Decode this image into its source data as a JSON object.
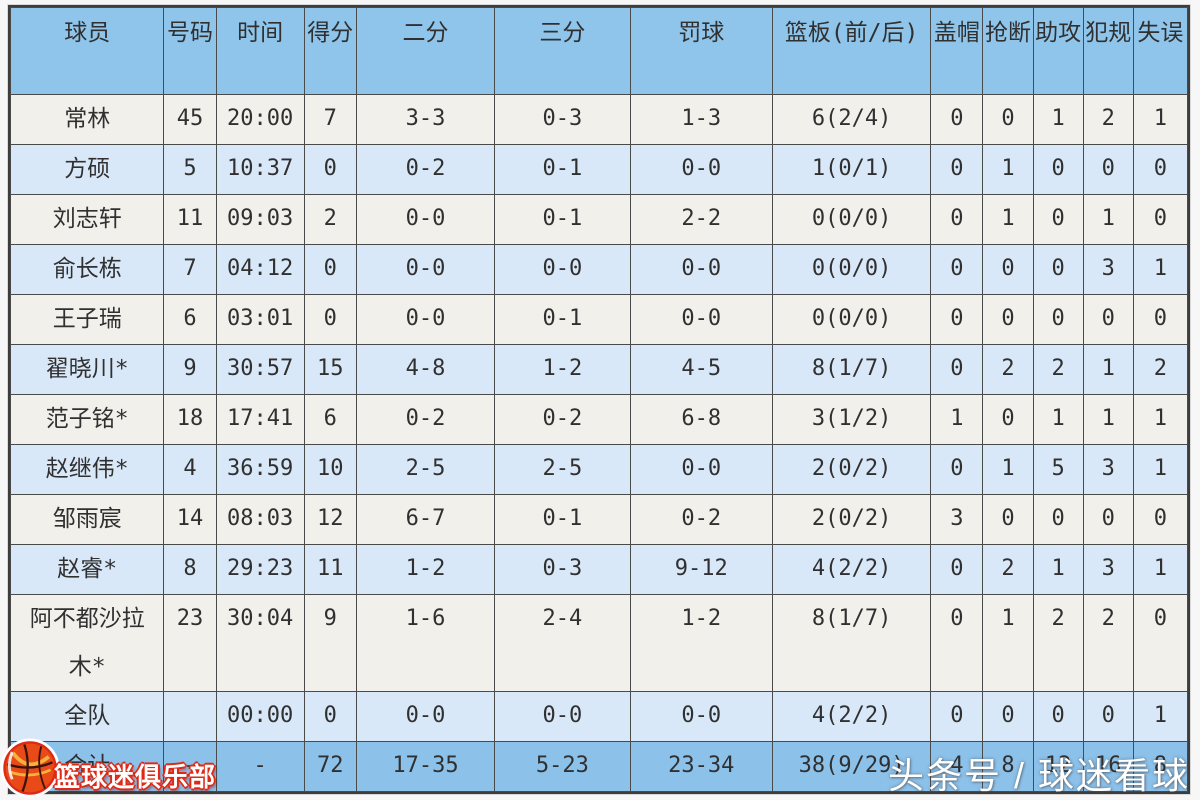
{
  "chart_data": {
    "type": "table",
    "title": "CBA player box score (Chinese)",
    "columns": [
      {
        "key": "player",
        "label": "球员"
      },
      {
        "key": "number",
        "label": "号码"
      },
      {
        "key": "time",
        "label": "时间"
      },
      {
        "key": "points",
        "label": "得分"
      },
      {
        "key": "two",
        "label": "二分"
      },
      {
        "key": "three",
        "label": "三分"
      },
      {
        "key": "ft",
        "label": "罚球"
      },
      {
        "key": "reb",
        "label": "篮板(前/后)"
      },
      {
        "key": "blk",
        "label": "盖帽"
      },
      {
        "key": "stl",
        "label": "抢断"
      },
      {
        "key": "ast",
        "label": "助攻"
      },
      {
        "key": "pf",
        "label": "犯规"
      },
      {
        "key": "to",
        "label": "失误"
      }
    ],
    "rows": [
      {
        "player": "常林",
        "number": "45",
        "time": "20:00",
        "points": "7",
        "two": "3-3",
        "three": "0-3",
        "ft": "1-3",
        "reb": "6(2/4)",
        "blk": "0",
        "stl": "0",
        "ast": "1",
        "pf": "2",
        "to": "1"
      },
      {
        "player": "方硕",
        "number": "5",
        "time": "10:37",
        "points": "0",
        "two": "0-2",
        "three": "0-1",
        "ft": "0-0",
        "reb": "1(0/1)",
        "blk": "0",
        "stl": "1",
        "ast": "0",
        "pf": "0",
        "to": "0"
      },
      {
        "player": "刘志轩",
        "number": "11",
        "time": "09:03",
        "points": "2",
        "two": "0-0",
        "three": "0-1",
        "ft": "2-2",
        "reb": "0(0/0)",
        "blk": "0",
        "stl": "1",
        "ast": "0",
        "pf": "1",
        "to": "0"
      },
      {
        "player": "俞长栋",
        "number": "7",
        "time": "04:12",
        "points": "0",
        "two": "0-0",
        "three": "0-0",
        "ft": "0-0",
        "reb": "0(0/0)",
        "blk": "0",
        "stl": "0",
        "ast": "0",
        "pf": "3",
        "to": "1"
      },
      {
        "player": "王子瑞",
        "number": "6",
        "time": "03:01",
        "points": "0",
        "two": "0-0",
        "three": "0-1",
        "ft": "0-0",
        "reb": "0(0/0)",
        "blk": "0",
        "stl": "0",
        "ast": "0",
        "pf": "0",
        "to": "0"
      },
      {
        "player": "翟晓川*",
        "number": "9",
        "time": "30:57",
        "points": "15",
        "two": "4-8",
        "three": "1-2",
        "ft": "4-5",
        "reb": "8(1/7)",
        "blk": "0",
        "stl": "2",
        "ast": "2",
        "pf": "1",
        "to": "2"
      },
      {
        "player": "范子铭*",
        "number": "18",
        "time": "17:41",
        "points": "6",
        "two": "0-2",
        "three": "0-2",
        "ft": "6-8",
        "reb": "3(1/2)",
        "blk": "1",
        "stl": "0",
        "ast": "1",
        "pf": "1",
        "to": "1"
      },
      {
        "player": "赵继伟*",
        "number": "4",
        "time": "36:59",
        "points": "10",
        "two": "2-5",
        "three": "2-5",
        "ft": "0-0",
        "reb": "2(0/2)",
        "blk": "0",
        "stl": "1",
        "ast": "5",
        "pf": "3",
        "to": "1"
      },
      {
        "player": "邹雨宸",
        "number": "14",
        "time": "08:03",
        "points": "12",
        "two": "6-7",
        "three": "0-1",
        "ft": "0-2",
        "reb": "2(0/2)",
        "blk": "3",
        "stl": "0",
        "ast": "0",
        "pf": "0",
        "to": "0"
      },
      {
        "player": "赵睿*",
        "number": "8",
        "time": "29:23",
        "points": "11",
        "two": "1-2",
        "three": "0-3",
        "ft": "9-12",
        "reb": "4(2/2)",
        "blk": "0",
        "stl": "2",
        "ast": "1",
        "pf": "3",
        "to": "1"
      },
      {
        "player": "阿不都沙拉木*",
        "number": "23",
        "time": "30:04",
        "points": "9",
        "two": "1-6",
        "three": "2-4",
        "ft": "1-2",
        "reb": "8(1/7)",
        "blk": "0",
        "stl": "1",
        "ast": "2",
        "pf": "2",
        "to": "0"
      },
      {
        "player": "全队",
        "number": "",
        "time": "00:00",
        "points": "0",
        "two": "0-0",
        "three": "0-0",
        "ft": "0-0",
        "reb": "4(2/2)",
        "blk": "0",
        "stl": "0",
        "ast": "0",
        "pf": "0",
        "to": "1"
      },
      {
        "player": "合计",
        "number": "-",
        "time": "-",
        "points": "72",
        "two": "17-35",
        "three": "5-23",
        "ft": "23-34",
        "reb": "38(9/29)",
        "blk": "4",
        "stl": "8",
        "ast": "12",
        "pf": "16",
        "to": "8"
      }
    ],
    "layout_hints": {
      "grid": true,
      "striped": true,
      "total_row": "合计"
    }
  },
  "watermarks": {
    "club_badge_label": "篮球迷俱乐部",
    "club_badge_icon": "basketball-icon",
    "headline": "头条号 / 球迷看球"
  },
  "colors": {
    "header_bg": "#8fc5ea",
    "row_light": "#f2f0eb",
    "row_blue": "#d9e8f8",
    "total_row_bg": "#8cc1ea",
    "cell_border": "#4a4a4a",
    "text": "#303030",
    "badge_red": "#e02915",
    "watermark_text": "#ffffff"
  }
}
